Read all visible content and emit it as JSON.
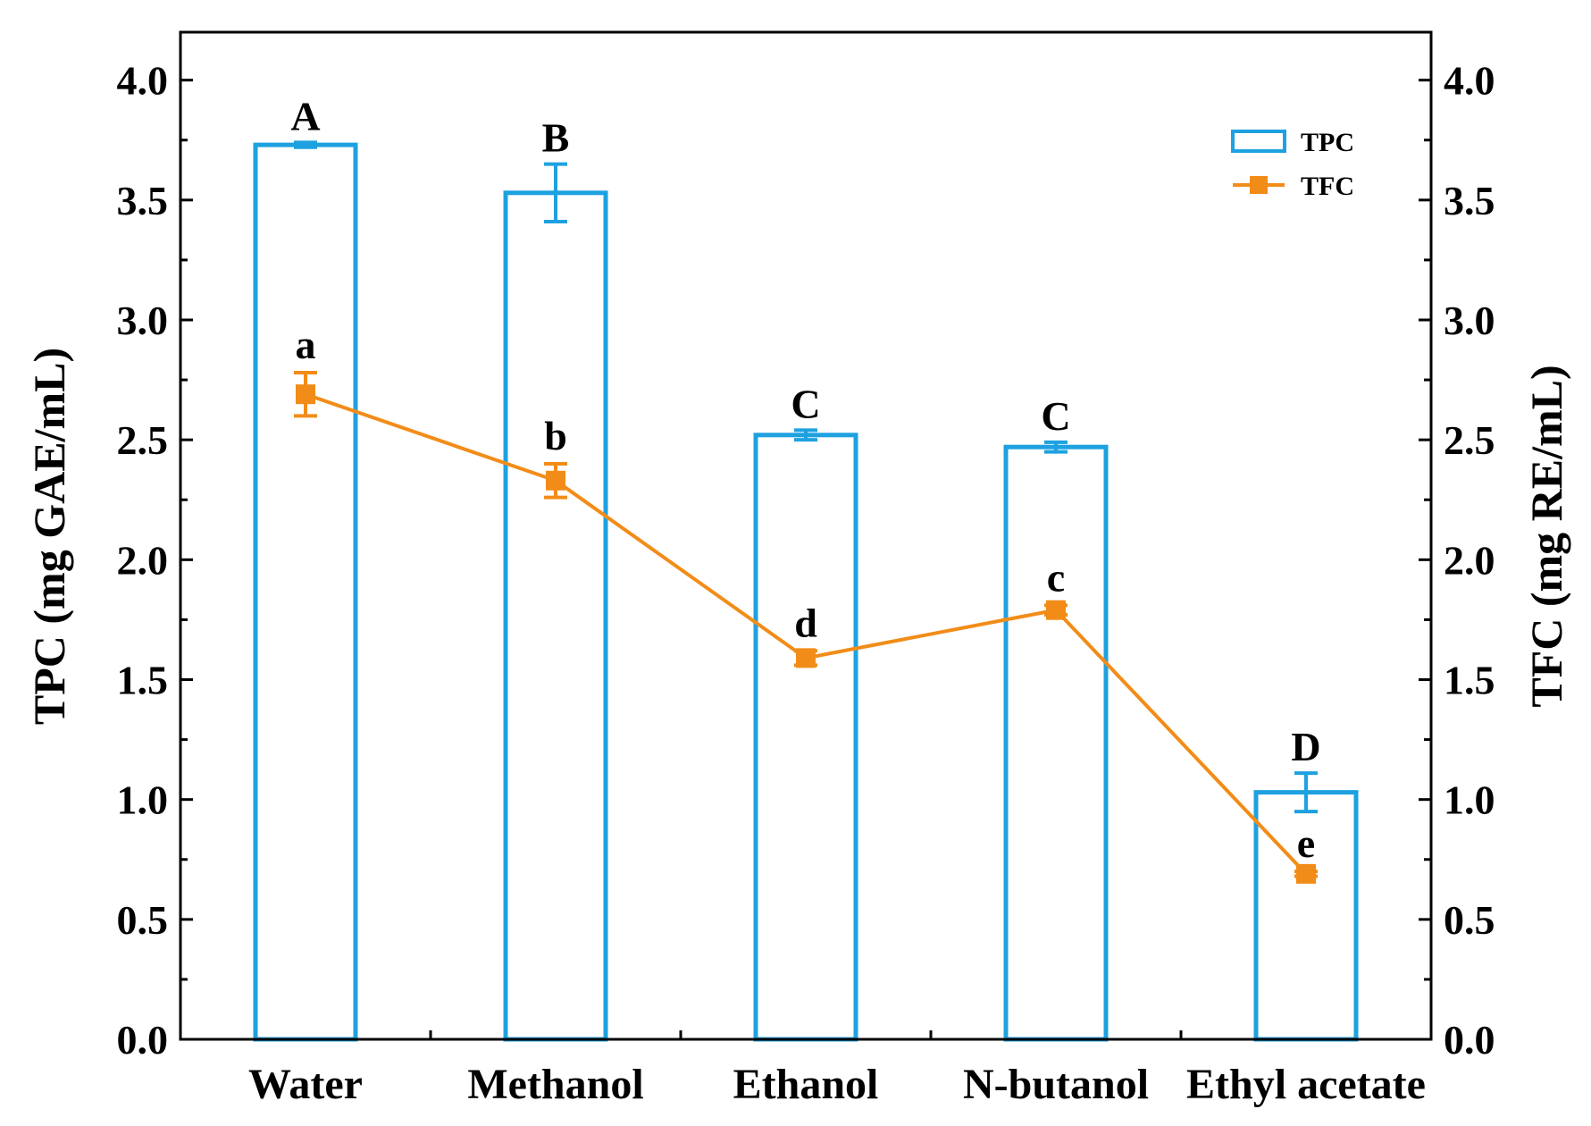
{
  "chart_data": {
    "type": "bar",
    "categories": [
      "Water",
      "Methanol",
      "Ethanol",
      "N-butanol",
      "Ethyl acetate"
    ],
    "series": [
      {
        "name": "TPC",
        "kind": "bar",
        "axis": "left",
        "values": [
          3.73,
          3.53,
          2.52,
          2.47,
          1.03
        ],
        "errors": [
          0.01,
          0.12,
          0.02,
          0.02,
          0.08
        ],
        "significance": [
          "A",
          "B",
          "C",
          "C",
          "D"
        ],
        "color": "#1ea1e0"
      },
      {
        "name": "TFC",
        "kind": "line",
        "axis": "right",
        "values": [
          2.69,
          2.33,
          1.59,
          1.79,
          0.69
        ],
        "errors": [
          0.09,
          0.07,
          0.03,
          0.02,
          0.01
        ],
        "significance": [
          "a",
          "b",
          "d",
          "c",
          "e"
        ],
        "color": "#f28c18"
      }
    ],
    "ylabel": "TPC (mg GAE/mL)",
    "y2label": "TFC (mg RE/mL)",
    "xlabel": "",
    "ylim": [
      0,
      4.2
    ],
    "y2lim": [
      0,
      4.2
    ],
    "yticks": [
      "0.0",
      "0.5",
      "1.0",
      "1.5",
      "2.0",
      "2.5",
      "3.0",
      "3.5",
      "4.0"
    ],
    "grid": false,
    "legend": [
      "TPC",
      "TFC"
    ],
    "legend_position": "top-right"
  }
}
